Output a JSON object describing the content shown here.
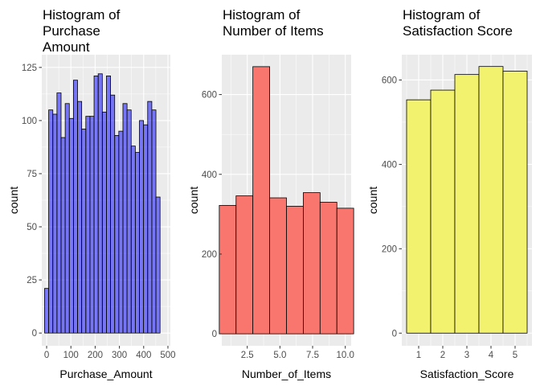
{
  "chart_data": [
    {
      "type": "bar",
      "title": "Histogram of\nPurchase\nAmount",
      "xlabel": "Purchase_Amount",
      "ylabel": "count",
      "bar_color": "#0000FF",
      "bar_alpha": 0.5,
      "xlim": [
        -20,
        510
      ],
      "ylim": [
        -6,
        131
      ],
      "xticks": [
        0,
        100,
        200,
        300,
        400,
        500
      ],
      "yticks": [
        0,
        25,
        50,
        75,
        100,
        125
      ],
      "bin_width": 17,
      "bins": [
        {
          "x": 0,
          "count": 21
        },
        {
          "x": 17,
          "count": 105
        },
        {
          "x": 34,
          "count": 103
        },
        {
          "x": 51,
          "count": 113
        },
        {
          "x": 68,
          "count": 92
        },
        {
          "x": 85,
          "count": 108
        },
        {
          "x": 102,
          "count": 101
        },
        {
          "x": 119,
          "count": 119
        },
        {
          "x": 136,
          "count": 109
        },
        {
          "x": 153,
          "count": 96
        },
        {
          "x": 170,
          "count": 102
        },
        {
          "x": 187,
          "count": 102
        },
        {
          "x": 204,
          "count": 121
        },
        {
          "x": 221,
          "count": 122
        },
        {
          "x": 238,
          "count": 104
        },
        {
          "x": 255,
          "count": 121
        },
        {
          "x": 272,
          "count": 112
        },
        {
          "x": 289,
          "count": 93
        },
        {
          "x": 306,
          "count": 95
        },
        {
          "x": 323,
          "count": 108
        },
        {
          "x": 340,
          "count": 105
        },
        {
          "x": 357,
          "count": 88
        },
        {
          "x": 374,
          "count": 85
        },
        {
          "x": 391,
          "count": 100
        },
        {
          "x": 408,
          "count": 98
        },
        {
          "x": 425,
          "count": 109
        },
        {
          "x": 442,
          "count": 105
        },
        {
          "x": 459,
          "count": 64
        }
      ]
    },
    {
      "type": "bar",
      "title": "Histogram of\nNumber of Items",
      "xlabel": "Number_of_Items",
      "ylabel": "count",
      "bar_color": "#F8766D",
      "xlim": [
        0.55,
        10.45
      ],
      "ylim": [
        -30,
        700
      ],
      "xticks": [
        2.5,
        5.0,
        7.5,
        10.0
      ],
      "yticks": [
        0,
        200,
        400,
        600
      ],
      "bin_width": 1.286,
      "bins": [
        {
          "x": 1.0,
          "count": 322
        },
        {
          "x": 2.286,
          "count": 346
        },
        {
          "x": 3.571,
          "count": 670
        },
        {
          "x": 4.857,
          "count": 341
        },
        {
          "x": 6.143,
          "count": 320
        },
        {
          "x": 7.429,
          "count": 354
        },
        {
          "x": 8.714,
          "count": 330
        },
        {
          "x": 10.0,
          "count": 315
        }
      ]
    },
    {
      "type": "bar",
      "title": "Histogram of\nSatisfaction Score",
      "xlabel": "Satisfaction_Score",
      "ylabel": "count",
      "bar_color": "#F2F26E",
      "xlim": [
        0.3,
        5.7
      ],
      "ylim": [
        -30,
        660
      ],
      "xticks": [
        1,
        2,
        3,
        4,
        5
      ],
      "yticks": [
        0,
        200,
        400,
        600
      ],
      "bin_width": 1,
      "bins": [
        {
          "x": 1,
          "count": 553
        },
        {
          "x": 2,
          "count": 576
        },
        {
          "x": 3,
          "count": 613
        },
        {
          "x": 4,
          "count": 632
        },
        {
          "x": 5,
          "count": 621
        }
      ]
    }
  ]
}
